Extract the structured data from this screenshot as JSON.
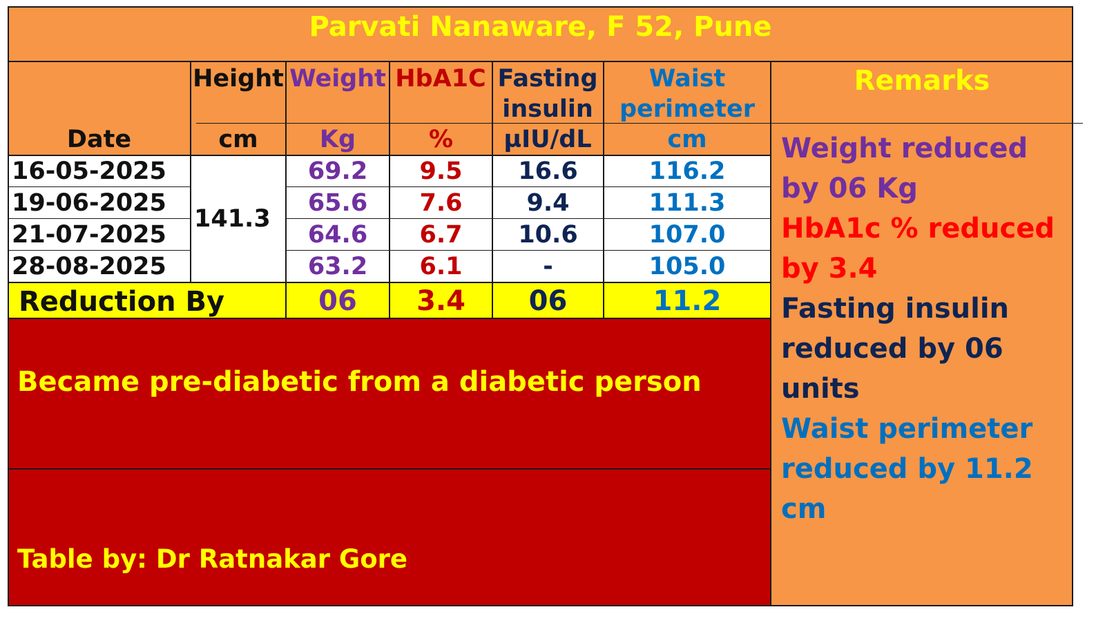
{
  "title": "Parvati Nanaware, F 52, Pune",
  "headers": {
    "date": "Date",
    "height": "Height",
    "height_unit": "cm",
    "weight": "Weight",
    "weight_unit": "Kg",
    "hba1c": "HbA1C",
    "hba1c_unit": "%",
    "insulin_line1": "Fasting",
    "insulin_line2": "insulin",
    "insulin_unit": "µIU/dL",
    "waist_line1": "Waist",
    "waist_line2": "perimeter",
    "waist_unit": "cm",
    "remarks": "Remarks"
  },
  "height_value": "141.3",
  "rows": [
    {
      "date": "16-05-2025",
      "weight": "69.2",
      "hba1c": "9.5",
      "insulin": "16.6",
      "waist": "116.2"
    },
    {
      "date": "19-06-2025",
      "weight": "65.6",
      "hba1c": "7.6",
      "insulin": "9.4",
      "waist": "111.3"
    },
    {
      "date": "21-07-2025",
      "weight": "64.6",
      "hba1c": "6.7",
      "insulin": "10.6",
      "waist": "107.0"
    },
    {
      "date": "28-08-2025",
      "weight": "63.2",
      "hba1c": "6.1",
      "insulin": "-",
      "waist": "105.0"
    }
  ],
  "reduction": {
    "label": "Reduction By",
    "weight": "06",
    "hba1c": "3.4",
    "insulin": "06",
    "waist": "11.2"
  },
  "status_text": "Became pre-diabetic from a diabetic person",
  "credit": "Table by: Dr Ratnakar Gore",
  "remarks": {
    "weight": "Weight reduced by 06 Kg",
    "hba1c": "HbA1c % reduced by 3.4",
    "insulin": "Fasting insulin reduced by 06 units",
    "waist": "Waist perimeter reduced by 11.2 cm"
  },
  "colors": {
    "orange": "#F79646",
    "yellow": "#FFFF00",
    "dark_red": "#C00000",
    "purple": "#7030A0",
    "red": "#C00000",
    "bright_red": "#FF0000",
    "navy": "#0F2453",
    "blue": "#0070C0"
  }
}
